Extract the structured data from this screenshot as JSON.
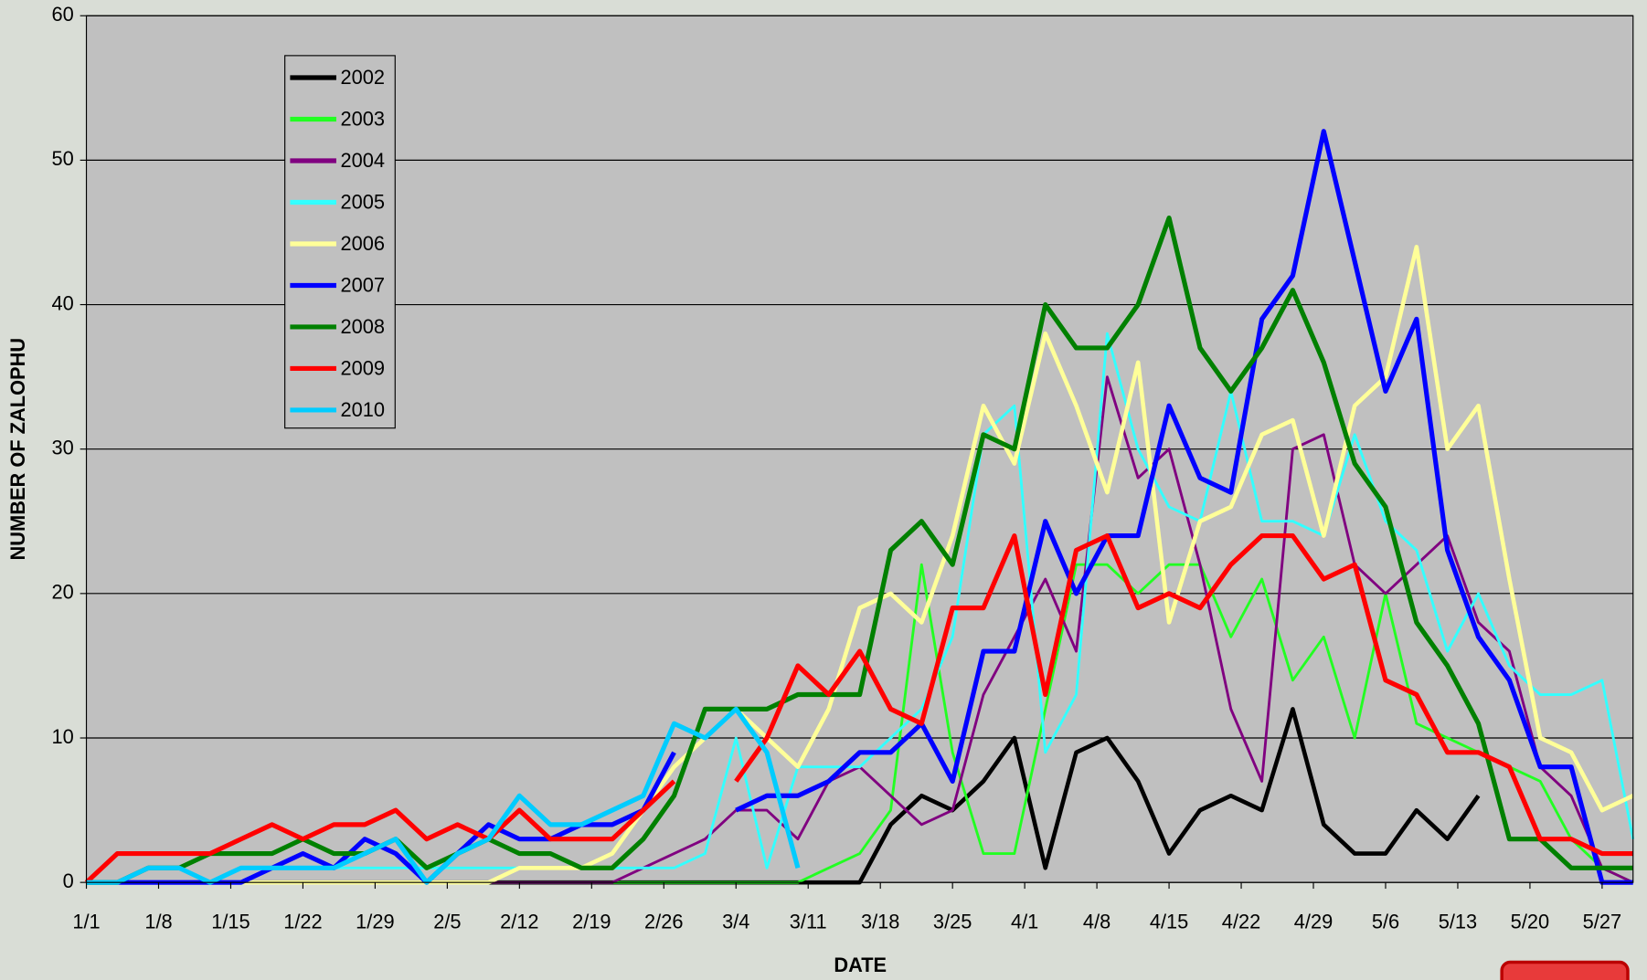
{
  "chart_data": {
    "type": "line",
    "x_label": "DATE",
    "y_label": "NUMBER OF ZALOPHU",
    "x": [
      0,
      3,
      6,
      9,
      12,
      15,
      18,
      21,
      24,
      27,
      30,
      33,
      36,
      39,
      42,
      45,
      48,
      51,
      54,
      57,
      60,
      63,
      66,
      69,
      72,
      75,
      78,
      81,
      84,
      87,
      90,
      93,
      96,
      99,
      102,
      105,
      108,
      111,
      114,
      117,
      120,
      123,
      126,
      129,
      132,
      135,
      138,
      141,
      144,
      147,
      150
    ],
    "xlim": [
      0,
      150
    ],
    "xticks": [
      {
        "value": 0,
        "label": "1/1"
      },
      {
        "value": 7,
        "label": "1/8"
      },
      {
        "value": 14,
        "label": "1/15"
      },
      {
        "value": 21,
        "label": "1/22"
      },
      {
        "value": 28,
        "label": "1/29"
      },
      {
        "value": 35,
        "label": "2/5"
      },
      {
        "value": 42,
        "label": "2/12"
      },
      {
        "value": 49,
        "label": "2/19"
      },
      {
        "value": 56,
        "label": "2/26"
      },
      {
        "value": 63,
        "label": "3/4"
      },
      {
        "value": 70,
        "label": "3/11"
      },
      {
        "value": 77,
        "label": "3/18"
      },
      {
        "value": 84,
        "label": "3/25"
      },
      {
        "value": 91,
        "label": "4/1"
      },
      {
        "value": 98,
        "label": "4/8"
      },
      {
        "value": 105,
        "label": "4/15"
      },
      {
        "value": 112,
        "label": "4/22"
      },
      {
        "value": 119,
        "label": "4/29"
      },
      {
        "value": 126,
        "label": "5/6"
      },
      {
        "value": 133,
        "label": "5/13"
      },
      {
        "value": 140,
        "label": "5/20"
      },
      {
        "value": 147,
        "label": "5/27"
      }
    ],
    "ylim": [
      0,
      60
    ],
    "yticks": [
      0,
      10,
      20,
      30,
      40,
      50,
      60
    ],
    "grid": true,
    "legend": "upper left",
    "series": [
      {
        "name": "2002",
        "color": "#000000",
        "values": [
          0,
          0,
          0,
          0,
          0,
          0,
          0,
          0,
          0,
          0,
          0,
          0,
          0,
          0,
          0,
          0,
          0,
          0,
          0,
          0,
          0,
          0,
          0,
          0,
          0,
          0,
          4,
          6,
          5,
          7,
          10,
          1,
          9,
          10,
          7,
          2,
          5,
          6,
          5,
          12,
          4,
          2,
          2,
          5,
          3,
          6,
          null,
          null,
          null,
          null,
          null
        ]
      },
      {
        "name": "2003",
        "color": "#22ff22",
        "values": [
          0,
          0,
          0,
          0,
          0,
          0,
          0,
          0,
          0,
          0,
          0,
          0,
          0,
          0,
          0,
          0,
          0,
          0,
          0,
          0,
          0,
          0,
          0,
          0,
          1,
          2,
          5,
          22,
          9,
          2,
          2,
          12,
          22,
          22,
          20,
          22,
          22,
          17,
          21,
          14,
          17,
          10,
          20,
          11,
          10,
          9,
          8,
          7,
          3,
          1,
          0
        ]
      },
      {
        "name": "2004",
        "color": "#800080",
        "values": [
          0,
          0,
          0,
          0,
          0,
          0,
          0,
          0,
          0,
          0,
          0,
          0,
          0,
          0,
          0,
          0,
          0,
          0,
          1,
          2,
          3,
          5,
          5,
          3,
          7,
          8,
          6,
          4,
          5,
          13,
          17,
          21,
          16,
          35,
          28,
          30,
          22,
          12,
          7,
          30,
          31,
          22,
          20,
          22,
          24,
          18,
          16,
          8,
          6,
          1,
          0
        ]
      },
      {
        "name": "2005",
        "color": "#33ffff",
        "values": [
          0,
          0,
          1,
          1,
          0,
          1,
          1,
          1,
          1,
          1,
          1,
          1,
          1,
          1,
          1,
          1,
          1,
          1,
          1,
          1,
          2,
          10,
          1,
          8,
          8,
          8,
          10,
          12,
          17,
          31,
          33,
          9,
          13,
          38,
          30,
          26,
          25,
          34,
          25,
          25,
          24,
          31,
          25,
          23,
          16,
          20,
          15,
          13,
          13,
          14,
          3
        ]
      },
      {
        "name": "2006",
        "color": "#ffff99",
        "values": [
          0,
          0,
          0,
          0,
          0,
          0,
          0,
          0,
          0,
          0,
          0,
          0,
          0,
          0,
          1,
          1,
          1,
          2,
          5,
          8,
          10,
          12,
          10,
          8,
          12,
          19,
          20,
          18,
          24,
          33,
          29,
          38,
          33,
          27,
          36,
          18,
          25,
          26,
          31,
          32,
          24,
          33,
          35,
          44,
          30,
          33,
          21,
          10,
          9,
          5,
          6
        ]
      },
      {
        "name": "2007",
        "color": "#0000ff",
        "values": [
          0,
          0,
          0,
          0,
          0,
          0,
          1,
          2,
          1,
          3,
          2,
          0,
          2,
          4,
          3,
          3,
          4,
          4,
          5,
          9,
          null,
          5,
          6,
          6,
          7,
          9,
          9,
          11,
          7,
          16,
          16,
          25,
          20,
          24,
          24,
          33,
          28,
          27,
          39,
          42,
          52,
          43,
          34,
          39,
          23,
          17,
          14,
          8,
          8,
          0,
          0
        ]
      },
      {
        "name": "2008",
        "color": "#008000",
        "values": [
          0,
          0,
          1,
          1,
          2,
          2,
          2,
          3,
          2,
          2,
          3,
          1,
          2,
          3,
          2,
          2,
          1,
          1,
          3,
          6,
          12,
          12,
          12,
          13,
          13,
          13,
          23,
          25,
          22,
          31,
          30,
          40,
          37,
          37,
          40,
          46,
          37,
          34,
          37,
          41,
          36,
          29,
          26,
          18,
          15,
          11,
          3,
          3,
          1,
          1,
          1
        ]
      },
      {
        "name": "2009",
        "color": "#ff0000",
        "values": [
          0,
          2,
          2,
          2,
          2,
          3,
          4,
          3,
          4,
          4,
          5,
          3,
          4,
          3,
          5,
          3,
          3,
          3,
          5,
          7,
          null,
          7,
          10,
          15,
          13,
          16,
          12,
          11,
          19,
          19,
          24,
          13,
          23,
          24,
          19,
          20,
          19,
          22,
          24,
          24,
          21,
          22,
          14,
          13,
          9,
          9,
          8,
          3,
          3,
          2,
          2
        ]
      },
      {
        "name": "2010",
        "color": "#00ccff",
        "values": [
          0,
          0,
          1,
          1,
          0,
          1,
          1,
          1,
          1,
          2,
          3,
          0,
          2,
          3,
          6,
          4,
          4,
          5,
          6,
          11,
          10,
          12,
          9,
          1,
          null,
          null,
          null,
          null,
          null,
          null,
          null,
          null,
          null,
          null,
          null,
          null,
          null,
          null,
          null,
          null,
          null,
          null,
          null,
          null,
          null,
          null,
          null,
          null,
          null,
          null,
          null
        ]
      }
    ]
  }
}
